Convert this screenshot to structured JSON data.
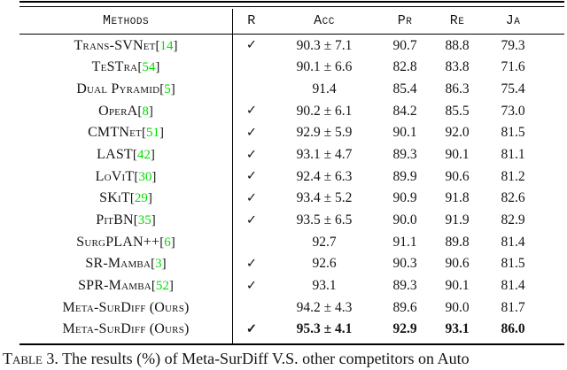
{
  "table": {
    "headers": {
      "methods": "Methods",
      "r": "R",
      "acc": "Acc",
      "pr": "Pr",
      "re": "Re",
      "ja": "Ja"
    },
    "checkmark": "✓",
    "citation_color": "#00dd00",
    "rows": [
      {
        "method": "Trans-SVNet",
        "cite": "14",
        "r": "✓",
        "acc": "90.3 ± 7.1",
        "pr": "90.7",
        "re": "88.8",
        "ja": "79.3"
      },
      {
        "method": "TeSTra",
        "cite": "54",
        "r": "",
        "acc": "90.1 ± 6.6",
        "pr": "82.8",
        "re": "83.8",
        "ja": "71.6"
      },
      {
        "method": "Dual Pyramid",
        "cite": "5",
        "r": "",
        "acc": "91.4",
        "pr": "85.4",
        "re": "86.3",
        "ja": "75.4"
      },
      {
        "method": "OperA",
        "cite": "8",
        "r": "✓",
        "acc": "90.2 ± 6.1",
        "pr": "84.2",
        "re": "85.5",
        "ja": "73.0"
      },
      {
        "method": "CMTNet",
        "cite": "51",
        "r": "✓",
        "acc": "92.9 ± 5.9",
        "pr": "90.1",
        "re": "92.0",
        "ja": "81.5"
      },
      {
        "method": "LAST",
        "cite": "42",
        "r": "✓",
        "acc": "93.1 ± 4.7",
        "pr": "89.3",
        "re": "90.1",
        "ja": "81.1"
      },
      {
        "method": "LoViT",
        "cite": "30",
        "r": "✓",
        "acc": "92.4 ± 6.3",
        "pr": "89.9",
        "re": "90.6",
        "ja": "81.2"
      },
      {
        "method": "SKiT",
        "cite": "29",
        "r": "✓",
        "acc": "93.4 ± 5.2",
        "pr": "90.9",
        "re": "91.8",
        "ja": "82.6"
      },
      {
        "method": "PitBN",
        "cite": "35",
        "r": "✓",
        "acc": "93.5 ± 6.5",
        "pr": "90.0",
        "re": "91.9",
        "ja": "82.9"
      },
      {
        "method": "SurgPLAN++",
        "cite": "6",
        "r": "",
        "acc": "92.7",
        "pr": "91.1",
        "re": "89.8",
        "ja": "81.4"
      },
      {
        "method": "SR-Mamba",
        "cite": "3",
        "r": "✓",
        "acc": "92.6",
        "pr": "90.3",
        "re": "90.6",
        "ja": "81.5"
      },
      {
        "method": "SPR-Mamba",
        "cite": "52",
        "r": "✓",
        "acc": "93.1",
        "pr": "89.3",
        "re": "90.1",
        "ja": "81.4"
      },
      {
        "method": "Meta-SurDiff (Ours)",
        "cite": "",
        "r": "",
        "acc": "94.2 ± 4.3",
        "pr": "89.6",
        "re": "90.0",
        "ja": "81.7"
      },
      {
        "method": "Meta-SurDiff (Ours)",
        "cite": "",
        "r": "✓",
        "acc": "95.3 ± 4.1",
        "pr": "92.9",
        "re": "93.1",
        "ja": "86.0"
      }
    ]
  },
  "caption": {
    "label": "Table 3.",
    "text": "The results (%) of Meta-SurDiff V.S. other competitors on Auto"
  }
}
